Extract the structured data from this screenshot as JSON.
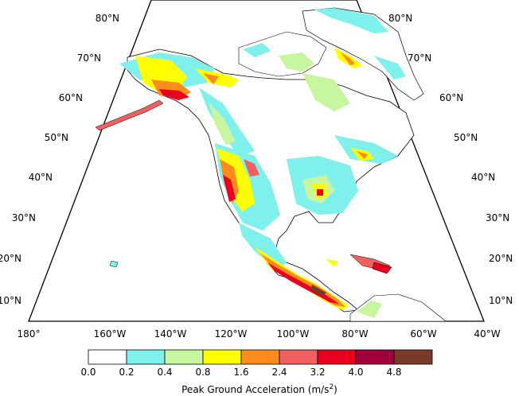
{
  "map": {
    "lat_labels_left": [
      "80°N",
      "70°N",
      "60°N",
      "50°N",
      "40°N",
      "30°N",
      "20°N",
      "10°N"
    ],
    "lat_labels_right": [
      "80°N",
      "70°N",
      "60°N",
      "50°N",
      "40°N",
      "30°N",
      "20°N",
      "10°N"
    ],
    "lon_labels_bottom": [
      "180°",
      "160°W",
      "140°W",
      "120°W",
      "100°W",
      "80°W",
      "60°W",
      "40°W"
    ],
    "colors": {
      "0.0-0.2": "#ffffff",
      "0.2-0.4": "#7ff0ec",
      "0.4-0.8": "#c8f5a0",
      "0.8-1.6": "#ffff00",
      "1.6-2.4": "#ff8a1e",
      "2.4-3.2": "#f06060",
      "3.2-4.0": "#e8001e",
      "4.0-4.8": "#a0003c",
      "4.8+": "#7a3a28"
    }
  },
  "colorbar": {
    "ticks": [
      "0.0",
      "0.2",
      "0.4",
      "0.8",
      "1.6",
      "2.4",
      "3.2",
      "4.0",
      "4.8"
    ],
    "colors": [
      "#ffffff",
      "#7ff0ec",
      "#c8f5a0",
      "#ffff00",
      "#ff8a1e",
      "#f06060",
      "#e8001e",
      "#a0003c",
      "#7a3a28"
    ],
    "title_main": "Peak Ground Acceleration (m/s",
    "title_sup": "2",
    "title_end": ")"
  }
}
